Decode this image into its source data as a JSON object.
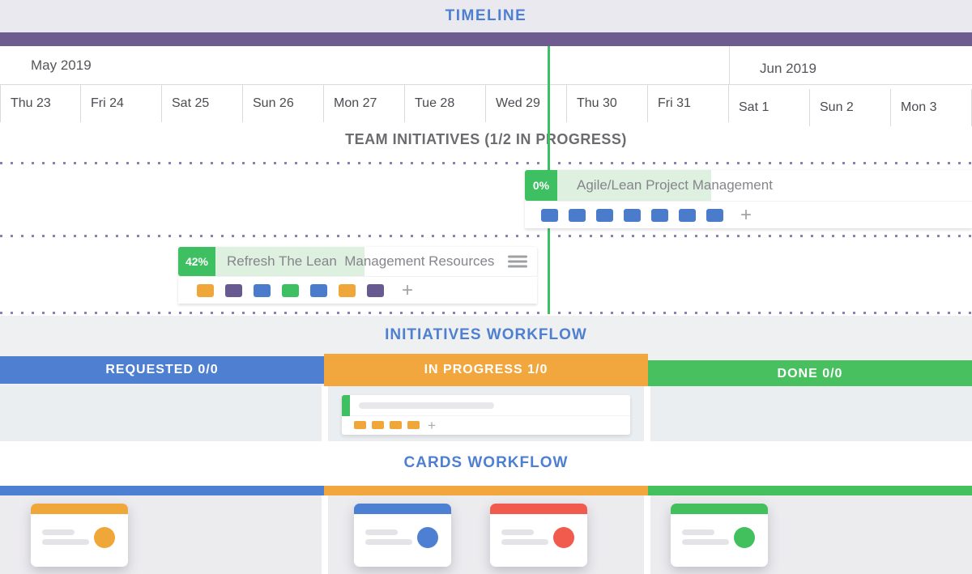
{
  "timeline": {
    "title": "TIMELINE",
    "accent_bar_color": "#6e5c91",
    "today_line_color": "#3ebf62",
    "months": [
      {
        "label": "May 2019"
      },
      {
        "label": "Jun 2019"
      }
    ],
    "days": [
      "Thu 23",
      "Fri 24",
      "Sat 25",
      "Sun 26",
      "Mon 27",
      "Tue 28",
      "Wed 29",
      "Thu 30",
      "Fri 31",
      "Sat 1",
      "Sun 2",
      "Mon 3"
    ]
  },
  "team_initiatives": {
    "title": "TEAM INITIATIVES (1/2 IN PROGRESS)",
    "separator_dot_color": "#8a80b4",
    "tasks": [
      {
        "progress": "0%",
        "name": "Agile/Lean Project Management",
        "progress_color": "#3ebf62",
        "fill_color": "#def0df",
        "card_colors": [
          "#4b7ccc",
          "#4b7ccc",
          "#4b7ccc",
          "#4b7ccc",
          "#4b7ccc",
          "#4b7ccc",
          "#4b7ccc"
        ],
        "add_label": "+"
      },
      {
        "progress": "42%",
        "name": "Refresh The Lean  Management Resources",
        "progress_color": "#3ebf62",
        "fill_color": "#def0df",
        "card_colors": [
          "#f0a73a",
          "#675a90",
          "#4b7ccc",
          "#3ebf62",
          "#4b7ccc",
          "#f0a73a",
          "#675a90"
        ],
        "add_label": "+"
      }
    ]
  },
  "initiatives_workflow": {
    "title": "INITIATIVES WORKFLOW",
    "columns": [
      {
        "label": "REQUESTED 0/0",
        "color": "#4e7fd0"
      },
      {
        "label": "IN PROGRESS 1/0",
        "color": "#f2a63e"
      },
      {
        "label": "DONE 0/0",
        "color": "#49c05f"
      }
    ],
    "card": {
      "accent_color": "#3ebf62",
      "chip_colors": [
        "#f0a73a",
        "#f0a73a",
        "#f0a73a",
        "#f0a73a"
      ],
      "add_label": "+"
    }
  },
  "cards_workflow": {
    "title": "CARDS WORKFLOW",
    "lane_colors": [
      "#4d7fd2",
      "#f2a63e",
      "#45c05f"
    ],
    "cards": [
      {
        "accent_color": "#f0a73a"
      },
      {
        "accent_color": "#4d7fd2"
      },
      {
        "accent_color": "#f15b4e"
      },
      {
        "accent_color": "#42c05e"
      }
    ]
  }
}
